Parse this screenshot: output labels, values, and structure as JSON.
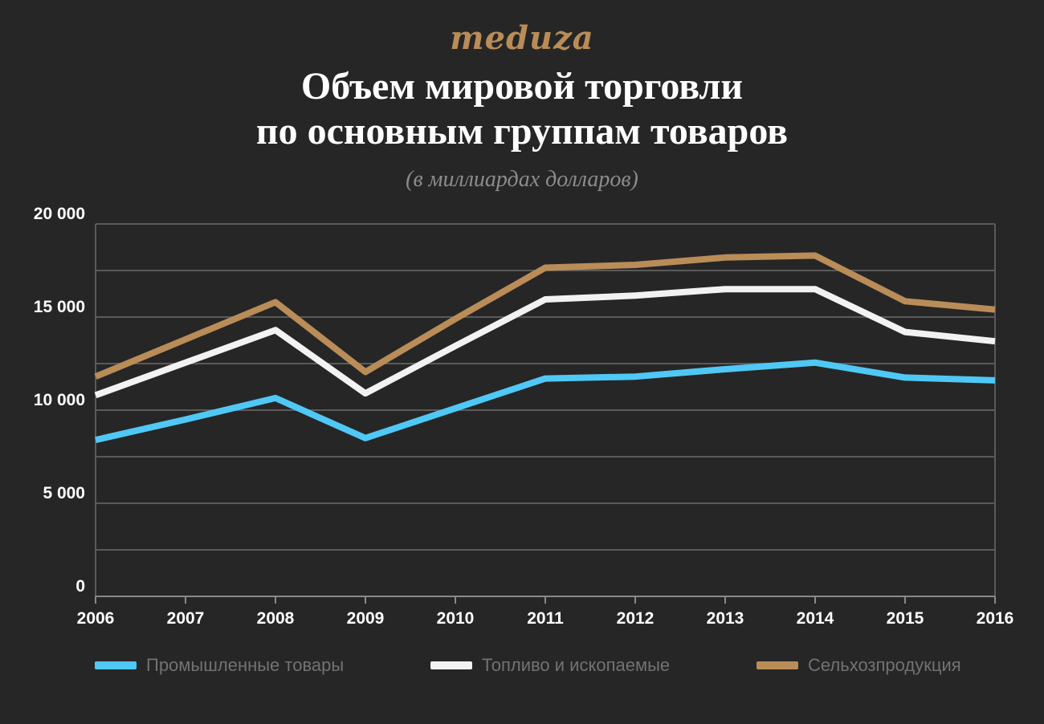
{
  "logo": "meduza",
  "header": {
    "title_line1": "Объем мировой торговли",
    "title_line2": "по основным группам товаров",
    "subtitle": "(в миллиардах долларов)"
  },
  "colors": {
    "background": "#262626",
    "grid": "#5a5a5a",
    "industrial": "#4fc8f5",
    "fuel": "#f2f2f2",
    "agri": "#b98c58"
  },
  "chart_data": {
    "type": "line",
    "title": "Объем мировой торговли по основным группам товаров",
    "subtitle": "(в миллиардах долларов)",
    "xlabel": "",
    "ylabel": "",
    "x": [
      "2006",
      "2007",
      "2008",
      "2009",
      "2010",
      "2011",
      "2012",
      "2013",
      "2014",
      "2015",
      "2016"
    ],
    "ylim": [
      0,
      20000
    ],
    "yticks": [
      {
        "value": 0,
        "label": "0"
      },
      {
        "value": 5000,
        "label": "5 000"
      },
      {
        "value": 10000,
        "label": "10 000"
      },
      {
        "value": 15000,
        "label": "15 000"
      },
      {
        "value": 20000,
        "label": "20 000"
      }
    ],
    "grid_step": 2500,
    "grid": true,
    "legend_position": "bottom",
    "series": [
      {
        "name": "Промышленные товары",
        "color": "#4fc8f5",
        "values": [
          8400,
          9500,
          10650,
          8500,
          10100,
          11700,
          11800,
          12200,
          12550,
          11750,
          11600
        ]
      },
      {
        "name": "Топливо и ископаемые",
        "color": "#f2f2f2",
        "values": [
          10800,
          12550,
          14300,
          10900,
          13450,
          15950,
          16150,
          16500,
          16500,
          14200,
          13700
        ]
      },
      {
        "name": "Сельхозпродукция",
        "color": "#b98c58",
        "values": [
          11800,
          13800,
          15800,
          12050,
          14900,
          17650,
          17800,
          18200,
          18300,
          15850,
          15400
        ]
      }
    ]
  }
}
